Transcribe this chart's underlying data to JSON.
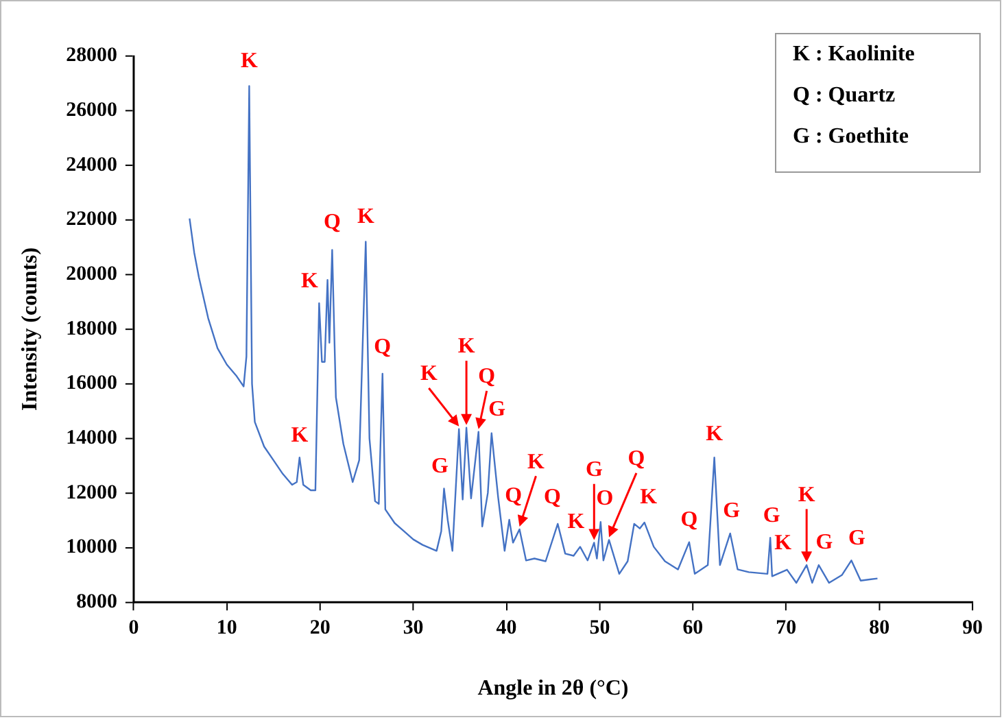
{
  "chart_data": {
    "type": "line",
    "xlabel": "Angle in 2θ (°C)",
    "ylabel": "Intensity (counts)",
    "color": "#4472c4",
    "marker": "none",
    "line_style": "solid",
    "xlim": [
      0,
      90
    ],
    "xticks": [
      0,
      10,
      20,
      30,
      40,
      50,
      60,
      70,
      80,
      90
    ],
    "ylim": [
      8000,
      28000
    ],
    "yticks": [
      8000,
      10000,
      12000,
      14000,
      16000,
      18000,
      20000,
      22000,
      24000,
      26000,
      28000
    ],
    "x": [
      6,
      6.5,
      7,
      8,
      9,
      10,
      11,
      11.8,
      12.1,
      12.4,
      12.7,
      13,
      14,
      15,
      16,
      17,
      17.5,
      17.8,
      18.2,
      19,
      19.5,
      19.9,
      20.2,
      20.5,
      20.8,
      21.0,
      21.3,
      21.7,
      22.5,
      23.5,
      24.2,
      24.9,
      25.3,
      25.9,
      26.3,
      26.7,
      27.0,
      28,
      29,
      30,
      31,
      32.5,
      33.0,
      33.3,
      33.7,
      34.2,
      34.9,
      35.3,
      35.7,
      36.2,
      37.0,
      37.4,
      38.0,
      38.4,
      39.1,
      39.8,
      40.3,
      40.7,
      41.4,
      42.1,
      43,
      44.2,
      45.5,
      46.3,
      47.2,
      47.9,
      48.7,
      49.4,
      49.7,
      50.1,
      50.4,
      51.0,
      52.1,
      53.0,
      53.7,
      54.3,
      54.8,
      55.8,
      57,
      58.4,
      59.6,
      60.2,
      61.6,
      62.3,
      62.9,
      64.0,
      64.8,
      66,
      68.0,
      68.3,
      68.5,
      70.1,
      71.1,
      72.2,
      72.8,
      73.5,
      74.6,
      76,
      77.0,
      78.0,
      79.8
    ],
    "values": [
      22050,
      20800,
      19900,
      18400,
      17300,
      16700,
      16300,
      15900,
      17000,
      26900,
      16000,
      14600,
      13700,
      13200,
      12700,
      12300,
      12400,
      13300,
      12300,
      12100,
      12100,
      18950,
      16800,
      16800,
      19800,
      17500,
      20900,
      15500,
      13800,
      12400,
      13200,
      21200,
      14000,
      11700,
      11600,
      16370,
      11400,
      10900,
      10600,
      10300,
      10100,
      9880,
      10600,
      12160,
      11000,
      9880,
      14340,
      11760,
      14390,
      11800,
      14240,
      10770,
      12000,
      14190,
      11860,
      9880,
      11020,
      10180,
      10670,
      9530,
      9600,
      9500,
      10870,
      9780,
      9700,
      10030,
      9530,
      10180,
      9600,
      10940,
      9530,
      10280,
      9040,
      9500,
      10870,
      10700,
      10920,
      10030,
      9500,
      9200,
      10200,
      9040,
      9360,
      13300,
      9360,
      10520,
      9200,
      9100,
      9040,
      10360,
      8950,
      9190,
      8710,
      9360,
      8710,
      9360,
      8710,
      9000,
      9530,
      8790,
      8870
    ],
    "annotations": [
      "K : Kaolinite",
      "Q : Quartz",
      "G : Goethite",
      {
        "text": "K",
        "x": 12.4,
        "y": 26900
      },
      {
        "text": "K",
        "x": 17.8,
        "y": 13300
      },
      {
        "text": "K",
        "x": 19.9,
        "y": 18950
      },
      {
        "text": "Q",
        "x": 21.3,
        "y": 20900
      },
      {
        "text": "K",
        "x": 24.9,
        "y": 21200
      },
      {
        "text": "Q",
        "x": 26.7,
        "y": 16370
      },
      {
        "text": "G",
        "x": 33.3,
        "y": 12160
      },
      {
        "text": "K",
        "x": 34.9,
        "y": 14340
      },
      {
        "text": "K",
        "x": 35.7,
        "y": 14390
      },
      {
        "text": "Q",
        "x": 37.0,
        "y": 14240
      },
      {
        "text": "G",
        "x": 38.4,
        "y": 14190
      },
      {
        "text": "Q",
        "x": 40.3,
        "y": 11020
      },
      {
        "text": "K",
        "x": 41.4,
        "y": 10670
      },
      {
        "text": "Q",
        "x": 45.5,
        "y": 10870
      },
      {
        "text": "K",
        "x": 47.9,
        "y": 10030
      },
      {
        "text": "G",
        "x": 49.4,
        "y": 10180
      },
      {
        "text": "O",
        "x": 50.1,
        "y": 10940
      },
      {
        "text": "Q",
        "x": 51.0,
        "y": 10280
      },
      {
        "text": "K",
        "x": 54.8,
        "y": 10920
      },
      {
        "text": "Q",
        "x": 59.6,
        "y": 10200
      },
      {
        "text": "K",
        "x": 62.3,
        "y": 13300
      },
      {
        "text": "G",
        "x": 64.0,
        "y": 10520
      },
      {
        "text": "G",
        "x": 68.3,
        "y": 10360
      },
      {
        "text": "K",
        "x": 70.1,
        "y": 9190
      },
      {
        "text": "K",
        "x": 72.2,
        "y": 9360
      },
      {
        "text": "G",
        "x": 73.5,
        "y": 9360
      },
      {
        "text": "G",
        "x": 77.0,
        "y": 9530
      }
    ]
  }
}
